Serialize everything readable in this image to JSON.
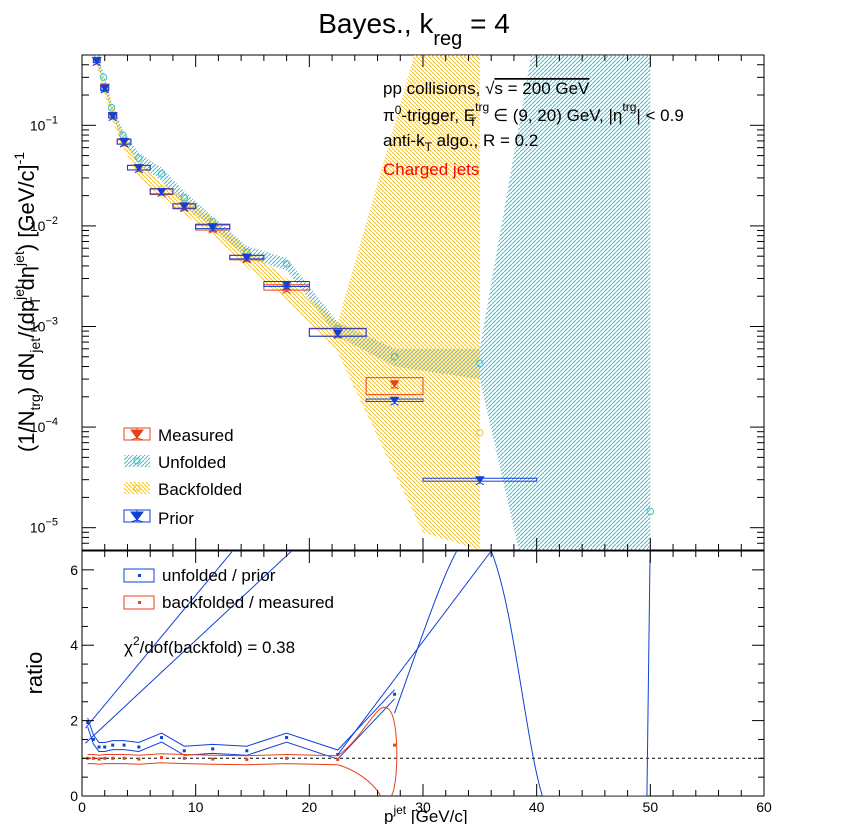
{
  "figure_title": "Bayes., k",
  "figure_title_sub": "reg",
  "figure_title_tail": " = 4",
  "annotations": {
    "line1_pre": "pp collisions, ",
    "line1_sqrt": "√",
    "line1_post": "s = 200 GeV",
    "line2_a": "π",
    "line2_b": "0",
    "line2_c": "-trigger, E",
    "line2_d": "trg",
    "line2_e": "T",
    "line2_f": " ∈ (9, 20) GeV, |η",
    "line2_g": "trg",
    "line2_h": "| < 0.9",
    "line3_a": "anti-k",
    "line3_b": "T",
    "line3_c": " algo., R = 0.2",
    "line4": "Charged jets",
    "chi2_a": "χ",
    "chi2_b": "2",
    "chi2_c": "/dof(backfold) = 0.38"
  },
  "colors": {
    "measured": "#e8401c",
    "unfolded": "#3fbfcf",
    "backfolded": "#f2c433",
    "prior": "#1040d8",
    "ratio_unfold": "#1040d8",
    "ratio_backfold": "#e8401c",
    "charged_jets_text": "#ff0000"
  },
  "chart_data": [
    {
      "type": "scatter",
      "panel": "top",
      "ylabel": "(1/N_trg) dN_jet/(dp_T^jet dη^jet) [GeV/c]^-1",
      "yscale": "log",
      "xlim": [
        0,
        60
      ],
      "ylim": [
        6e-06,
        0.5
      ],
      "y_ticks": [
        "10",
        "10",
        "10",
        "10",
        "10"
      ],
      "y_tick_exps": [
        "−5",
        "−4",
        "−3",
        "−2",
        "−1"
      ],
      "legend_placement": "bottom-left",
      "series": [
        {
          "name": "Measured",
          "x": [
            1.3,
            2.0,
            2.7,
            3.7,
            5.0,
            7.0,
            9.0,
            11.5,
            14.5,
            18.0,
            22.5,
            27.5
          ],
          "xerr": [
            0.3,
            0.35,
            0.35,
            0.6,
            1.0,
            1.0,
            1.0,
            1.5,
            1.5,
            2.0,
            2.5,
            2.5
          ],
          "y": [
            0.44,
            0.24,
            0.125,
            0.068,
            0.038,
            0.022,
            0.0155,
            0.0095,
            0.0048,
            0.0024,
            0.00085,
            0.00027
          ],
          "box_low": [
            0.42,
            0.225,
            0.12,
            0.065,
            0.036,
            0.0205,
            0.0148,
            0.0091,
            0.0046,
            0.0023,
            0.0008,
            0.00021
          ],
          "box_high": [
            0.46,
            0.255,
            0.132,
            0.072,
            0.04,
            0.0235,
            0.0165,
            0.0102,
            0.0051,
            0.0026,
            0.00096,
            0.00031
          ]
        },
        {
          "name": "Unfolded",
          "x": [
            1.3,
            1.9,
            2.6,
            3.6,
            5.0,
            7.0,
            9.0,
            11.5,
            14.5,
            18.0,
            22.5,
            27.5,
            35.0,
            50.0
          ],
          "y": [
            0.46,
            0.3,
            0.15,
            0.08,
            0.047,
            0.033,
            0.019,
            0.011,
            0.0055,
            0.0042,
            0.00095,
            0.0005,
            0.00043,
            1.45e-05
          ],
          "band_low": [
            0.41,
            0.27,
            0.13,
            0.07,
            0.041,
            0.028,
            0.016,
            0.0095,
            0.0048,
            0.0036,
            0.0008,
            0.0004,
            0.0003,
            1e-06,
            1e-06
          ],
          "band_high": [
            0.51,
            0.33,
            0.17,
            0.09,
            0.053,
            0.038,
            0.022,
            0.0125,
            0.0063,
            0.0048,
            0.0011,
            0.0006,
            0.0006,
            1,
            1
          ],
          "band_x": [
            1.3,
            1.9,
            2.6,
            3.6,
            5.0,
            7.0,
            9.0,
            11.5,
            14.5,
            18.0,
            22.5,
            27.5,
            35.0,
            40.0,
            50.0
          ]
        },
        {
          "name": "Backfolded",
          "x": [
            1.3,
            2.0,
            2.7,
            3.7,
            5.0,
            7.0,
            9.0,
            11.5,
            14.5,
            18.0,
            22.5,
            27.5,
            35.0
          ],
          "y": [
            0.44,
            0.23,
            0.13,
            0.067,
            0.037,
            0.023,
            0.016,
            0.01,
            0.0049,
            0.0024,
            0.00082,
            0.00026,
            8.8e-05
          ],
          "band_low": [
            0.38,
            0.2,
            0.11,
            0.058,
            0.031,
            0.019,
            0.013,
            0.0082,
            0.0039,
            0.0018,
            0.00055,
            9e-06,
            6e-06
          ],
          "band_high": [
            0.5,
            0.26,
            0.15,
            0.076,
            0.043,
            0.027,
            0.019,
            0.0118,
            0.0059,
            0.003,
            0.0011,
            1,
            1
          ],
          "band_x": [
            1.3,
            2.0,
            2.7,
            3.7,
            5.0,
            7.0,
            9.0,
            11.5,
            14.5,
            18.0,
            22.5,
            30.0,
            35.0
          ]
        },
        {
          "name": "Prior",
          "x": [
            1.3,
            2.0,
            2.7,
            3.7,
            5.0,
            7.0,
            9.0,
            11.5,
            14.5,
            18.0,
            22.5,
            27.5,
            35.0
          ],
          "xerr": [
            0.3,
            0.35,
            0.35,
            0.6,
            1.0,
            1.0,
            1.0,
            1.5,
            1.5,
            2.0,
            2.5,
            2.5,
            5.0
          ],
          "y": [
            0.44,
            0.235,
            0.125,
            0.069,
            0.038,
            0.022,
            0.0158,
            0.0098,
            0.0049,
            0.0026,
            0.00086,
            0.000185,
            3e-05
          ],
          "box_low": [
            0.42,
            0.222,
            0.118,
            0.065,
            0.036,
            0.0208,
            0.015,
            0.0094,
            0.0047,
            0.0025,
            0.0008,
            0.00018,
            2.9e-05
          ],
          "box_high": [
            0.46,
            0.25,
            0.132,
            0.073,
            0.04,
            0.0233,
            0.0166,
            0.0104,
            0.0051,
            0.0028,
            0.00095,
            0.00019,
            3.1e-05
          ]
        }
      ]
    },
    {
      "type": "line",
      "panel": "bottom",
      "xlabel": "p",
      "xlabel_sup": "jet",
      "xlabel_tail": " [GeV/c]",
      "ylabel": "ratio",
      "xlim": [
        0,
        60
      ],
      "ylim": [
        0,
        6.5
      ],
      "x_ticks": [
        0,
        10,
        20,
        30,
        40,
        50,
        60
      ],
      "y_ticks": [
        0,
        2,
        4,
        6
      ],
      "reference_line": 1,
      "legend_placement": "top-left",
      "series": [
        {
          "name": "unfolded / prior",
          "x": [
            0.5,
            1.0,
            1.5,
            2.0,
            2.7,
            3.7,
            5.0,
            7.0,
            9.0,
            11.5,
            14.5,
            18.0,
            22.5,
            27.5,
            35.0,
            40.0,
            50.0
          ],
          "y": [
            1.95,
            1.5,
            1.3,
            1.3,
            1.35,
            1.35,
            1.3,
            1.55,
            1.2,
            1.25,
            1.2,
            1.55,
            1.1,
            2.7,
            6.5,
            0.0,
            6.5
          ]
        },
        {
          "name": "backfolded / measured",
          "x": [
            0.5,
            1.0,
            1.5,
            2.0,
            2.7,
            3.7,
            5.0,
            7.0,
            9.0,
            11.5,
            14.5,
            18.0,
            22.5,
            27.5
          ],
          "y": [
            1.0,
            1.0,
            0.98,
            1.0,
            1.0,
            1.0,
            0.98,
            1.02,
            1.0,
            0.98,
            0.97,
            1.0,
            0.97,
            1.35
          ]
        }
      ]
    }
  ]
}
